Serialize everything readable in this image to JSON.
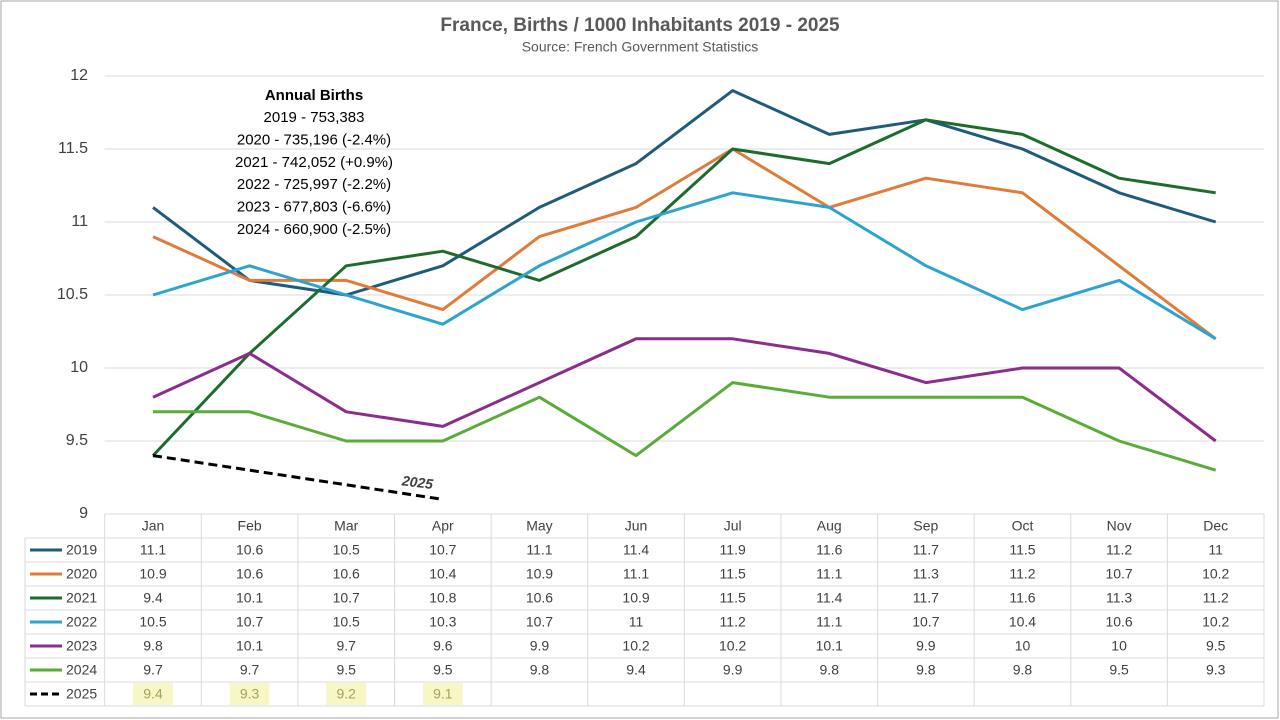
{
  "chart_data": {
    "type": "line",
    "title": "France, Births / 1000 Inhabitants 2019 - 2025",
    "subtitle": "Source: French Government Statistics",
    "categories": [
      "Jan",
      "Feb",
      "Mar",
      "Apr",
      "May",
      "Jun",
      "Jul",
      "Aug",
      "Sep",
      "Oct",
      "Nov",
      "Dec"
    ],
    "ylim": [
      9,
      12
    ],
    "yticks": [
      9,
      9.5,
      10,
      10.5,
      11,
      11.5,
      12
    ],
    "grid": true,
    "data_table": true,
    "series": [
      {
        "name": "2019",
        "color": "#1f5c7a",
        "values": [
          11.1,
          10.6,
          10.5,
          10.7,
          11.1,
          11.4,
          11.9,
          11.6,
          11.7,
          11.5,
          11.2,
          11
        ]
      },
      {
        "name": "2020",
        "color": "#e07b39",
        "values": [
          10.9,
          10.6,
          10.6,
          10.4,
          10.9,
          11.1,
          11.5,
          11.1,
          11.3,
          11.2,
          10.7,
          10.2
        ]
      },
      {
        "name": "2021",
        "color": "#1e6b2e",
        "values": [
          9.4,
          10.1,
          10.7,
          10.8,
          10.6,
          10.9,
          11.5,
          11.4,
          11.7,
          11.6,
          11.3,
          11.2
        ]
      },
      {
        "name": "2022",
        "color": "#2ea3d0",
        "values": [
          10.5,
          10.7,
          10.5,
          10.3,
          10.7,
          11,
          11.2,
          11.1,
          10.7,
          10.4,
          10.6,
          10.2
        ]
      },
      {
        "name": "2023",
        "color": "#8b2d8b",
        "values": [
          9.8,
          10.1,
          9.7,
          9.6,
          9.9,
          10.2,
          10.2,
          10.1,
          9.9,
          10,
          10,
          9.5
        ]
      },
      {
        "name": "2024",
        "color": "#5aab3a",
        "values": [
          9.7,
          9.7,
          9.5,
          9.5,
          9.8,
          9.4,
          9.9,
          9.8,
          9.8,
          9.8,
          9.5,
          9.3
        ]
      },
      {
        "name": "2025",
        "color": "#000000",
        "dashed": true,
        "highlight": "#f7f7c6",
        "values": [
          9.4,
          9.3,
          9.2,
          9.1,
          null,
          null,
          null,
          null,
          null,
          null,
          null,
          null
        ]
      }
    ],
    "annotation": {
      "title": "Annual Births",
      "lines": [
        "2019 - 753,383",
        "2020 - 735,196 (-2.4%)",
        "2021 - 742,052 (+0.9%)",
        "2022 - 725,997 (-2.2%)",
        "2023 - 677,803 (-6.6%)",
        "2024 - 660,900 (-2.5%)"
      ]
    }
  }
}
